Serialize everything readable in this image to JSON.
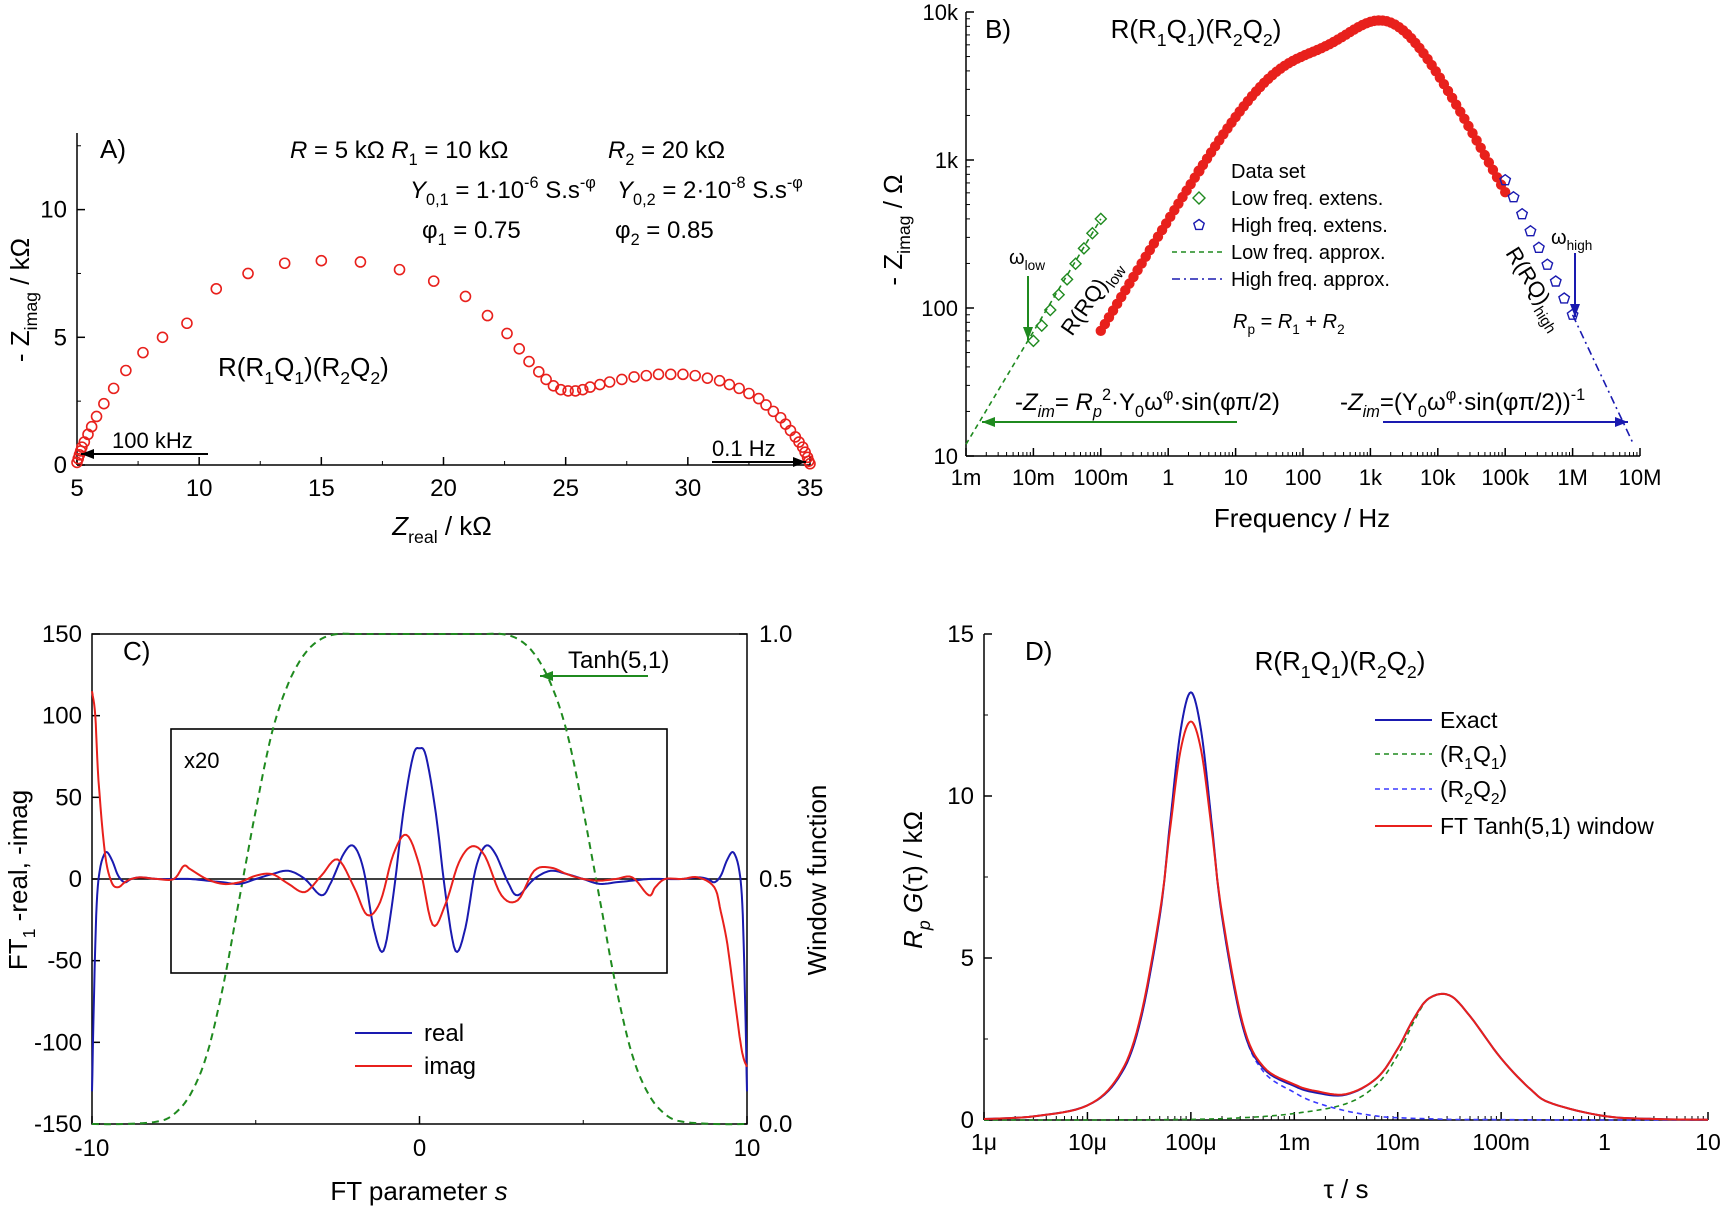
{
  "colors": {
    "red": "#e8201c",
    "blue": "#1a1ab0",
    "green": "#1f8a1f",
    "black": "#000000"
  },
  "chart_data": [
    {
      "panel": "A)",
      "type": "scatter",
      "title": "R(R1Q1)(R2Q2)",
      "xlabel": "Zreal / kΩ",
      "ylabel": "- Zimag / kΩ",
      "xlim": [
        5,
        35
      ],
      "ylim": [
        0,
        13
      ],
      "xticks": [
        5,
        10,
        15,
        20,
        25,
        30,
        35
      ],
      "yticks": [
        0,
        5,
        10
      ],
      "params": {
        "R": "R = 5 kΩ",
        "R1": "R1 = 10 kΩ",
        "R2": "R2 = 20 kΩ",
        "Y01": "Y0,1 = 1·10-6 S.s-φ",
        "Y02": "Y0,2 = 2·10-8 S.s-φ",
        "phi1": "φ1 = 0.75",
        "phi2": "φ2 = 0.85"
      },
      "annotations": {
        "high": "100 kHz",
        "low": "0.1 Hz"
      },
      "series": [
        {
          "marker": "open-circle",
          "color": "#e8201c",
          "x": [
            5.0,
            5.05,
            5.1,
            5.15,
            5.2,
            5.3,
            5.45,
            5.6,
            5.8,
            6.1,
            6.5,
            7.0,
            7.7,
            8.5,
            9.5,
            10.7,
            12.0,
            13.5,
            15.0,
            16.6,
            18.2,
            19.6,
            20.9,
            21.8,
            22.6,
            23.1,
            23.5,
            23.9,
            24.2,
            24.5,
            24.8,
            25.1,
            25.4,
            25.7,
            26.0,
            26.4,
            26.8,
            27.3,
            27.8,
            28.3,
            28.8,
            29.3,
            29.8,
            30.3,
            30.8,
            31.3,
            31.7,
            32.1,
            32.5,
            32.9,
            33.2,
            33.5,
            33.8,
            34.0,
            34.2,
            34.4,
            34.55,
            34.7,
            34.8,
            34.9,
            34.95,
            35.0
          ],
          "y": [
            0.1,
            0.25,
            0.4,
            0.55,
            0.7,
            0.9,
            1.2,
            1.5,
            1.9,
            2.4,
            3.0,
            3.7,
            4.4,
            5.0,
            5.55,
            6.9,
            7.5,
            7.9,
            8.0,
            7.95,
            7.65,
            7.2,
            6.6,
            5.85,
            5.15,
            4.55,
            4.05,
            3.65,
            3.35,
            3.1,
            2.95,
            2.9,
            2.9,
            2.95,
            3.05,
            3.15,
            3.25,
            3.35,
            3.45,
            3.5,
            3.55,
            3.55,
            3.55,
            3.5,
            3.4,
            3.3,
            3.15,
            3.0,
            2.8,
            2.6,
            2.35,
            2.1,
            1.85,
            1.6,
            1.35,
            1.1,
            0.9,
            0.7,
            0.5,
            0.3,
            0.15,
            0.05
          ]
        }
      ]
    },
    {
      "panel": "B)",
      "type": "scatter",
      "title": "R(R1Q1)(R2Q2)",
      "xlabel": "Frequency / Hz",
      "ylabel": "- Zimag / Ω",
      "xscale": "log",
      "yscale": "log",
      "xlim": [
        0.001,
        10000000
      ],
      "ylim": [
        10,
        10000
      ],
      "xtick_labels": [
        "1m",
        "10m",
        "100m",
        "1",
        "10",
        "100",
        "1k",
        "10k",
        "100k",
        "1M",
        "10M"
      ],
      "ytick_labels": [
        "10",
        "100",
        "1k",
        "10k"
      ],
      "legend": [
        "Data set",
        "Low  freq. extens.",
        "High freq. extens.",
        "Low  freq. approx.",
        "High freq. approx."
      ],
      "legend_note": "Rp = R1 + R2",
      "annotations": {
        "omega_low": "ωlow",
        "omega_high": "ωhigh",
        "rq_low": "R(RQ)low",
        "rq_high": "R(RQ)high",
        "formula_low": "-Zim= Rp2·Y0ωφ·sin(φπ/2)",
        "formula_high": "-Zim=(Y0ωφ·sin(φπ/2))-1"
      },
      "series": [
        {
          "name": "Data set",
          "marker": "filled-circle",
          "color": "#e8201c",
          "x_range_log10": [
            -1,
            5
          ],
          "points": 100
        },
        {
          "name": "Low  freq. extens.",
          "marker": "open-diamond",
          "color": "#1f8a1f",
          "x": [
            0.01,
            0.0133,
            0.0178,
            0.0237,
            0.0316,
            0.0422,
            0.0562,
            0.075,
            0.1
          ],
          "y": [
            60,
            76,
            97,
            123,
            156,
            199,
            253,
            320,
            400
          ]
        },
        {
          "name": "High freq. extens.",
          "marker": "open-pentagon",
          "color": "#1a1ab0",
          "x": [
            100000,
            133000,
            178000,
            237000,
            316000,
            422000,
            562000,
            750000,
            1000000
          ],
          "y": [
            730,
            560,
            430,
            330,
            255,
            196,
            151,
            116,
            90
          ]
        },
        {
          "name": "Low  freq. approx.",
          "line": "dashed",
          "color": "#1f8a1f",
          "x": [
            0.001,
            0.1
          ],
          "y": [
            12,
            400
          ]
        },
        {
          "name": "High freq. approx.",
          "line": "dashdot",
          "color": "#1a1ab0",
          "x": [
            1000000,
            8000000
          ],
          "y": [
            90,
            12
          ]
        }
      ]
    },
    {
      "panel": "C)",
      "type": "line",
      "xlabel": "FT parameter s",
      "ylabel": "FT1 -real,  -imag",
      "y2label": "Window function",
      "xlim": [
        -10,
        10
      ],
      "ylim": [
        -150,
        150
      ],
      "y2lim": [
        0,
        1
      ],
      "xticks": [
        -10,
        0,
        10
      ],
      "yticks": [
        -150,
        -100,
        -50,
        0,
        50,
        100,
        150
      ],
      "y2ticks": [
        "0.0",
        "0.5",
        "1.0"
      ],
      "annotations": {
        "window": "Tanh(5,1)",
        "inset": "x20"
      },
      "legend": [
        "real",
        "imag"
      ],
      "series": [
        {
          "name": "real",
          "color": "#1a1ab0",
          "x": [
            -10,
            -9.9,
            -9.8,
            -9.6,
            -9.4,
            -9.2,
            -9.0,
            -8.8,
            -8.5,
            -8.0,
            -7.5,
            -7.0,
            -6.5,
            -6.0,
            -5.5,
            -5.0,
            -4.5,
            -4.0,
            -3.5,
            -3.0,
            -2.7,
            -2.3,
            -2.0,
            -1.7,
            -1.4,
            -1.1,
            -0.8,
            -0.5,
            -0.2,
            0,
            0.2,
            0.5,
            0.8,
            1.1,
            1.4,
            1.7,
            2.0,
            2.3,
            2.7,
            3.0,
            3.5,
            4.0,
            4.5,
            5.0,
            5.5,
            6.0,
            6.5,
            7.0,
            7.5,
            8.0,
            8.5,
            8.8,
            9.0,
            9.2,
            9.4,
            9.6,
            9.8,
            9.9,
            10
          ],
          "y": [
            -130,
            -40,
            0,
            16,
            12,
            2,
            -2,
            0,
            1,
            0,
            0,
            0,
            -1,
            -2,
            -3,
            0,
            3,
            5,
            0,
            -10,
            -2,
            16,
            20,
            5,
            -30,
            -44,
            -10,
            40,
            75,
            80,
            75,
            40,
            -10,
            -44,
            -30,
            5,
            20,
            16,
            -2,
            -10,
            0,
            5,
            3,
            0,
            -3,
            -2,
            -1,
            0,
            0,
            0,
            1,
            0,
            -2,
            2,
            12,
            16,
            0,
            -40,
            -130
          ]
        },
        {
          "name": "imag",
          "color": "#e8201c",
          "x": [
            -10,
            -9.9,
            -9.8,
            -9.6,
            -9.4,
            -9.2,
            -9.0,
            -8.8,
            -8.5,
            -8.0,
            -7.5,
            -7.2,
            -7.0,
            -6.5,
            -6.0,
            -5.5,
            -5.0,
            -4.5,
            -4.0,
            -3.5,
            -3.0,
            -2.5,
            -2.0,
            -1.6,
            -1.2,
            -0.8,
            -0.4,
            0,
            0.4,
            0.8,
            1.2,
            1.6,
            2.0,
            2.5,
            3.0,
            3.5,
            4.0,
            4.5,
            5.0,
            5.5,
            6.0,
            6.5,
            7.0,
            7.2,
            7.5,
            8.0,
            8.5,
            9.0,
            9.2,
            9.4,
            9.6,
            9.8,
            9.9,
            10
          ],
          "y": [
            115,
            100,
            60,
            15,
            -2,
            -5,
            -2,
            0,
            1,
            0,
            0,
            8,
            6,
            0,
            -3,
            -2,
            2,
            3,
            -3,
            -8,
            2,
            12,
            -5,
            -22,
            -14,
            15,
            27,
            8,
            -28,
            -15,
            10,
            20,
            14,
            -10,
            -13,
            5,
            7,
            3,
            0,
            -1,
            0,
            1,
            -10,
            -5,
            0,
            0,
            1,
            -5,
            -20,
            -40,
            -70,
            -100,
            -110,
            -115
          ]
        },
        {
          "name": "Tanh(5,1)",
          "line": "dashed",
          "color": "#1f8a1f",
          "axis": "y2",
          "x": [
            -10,
            -9,
            -8,
            -7.5,
            -7,
            -6.5,
            -6,
            -5.5,
            -5,
            -4.5,
            -4,
            -3.5,
            -3,
            -2.5,
            -2,
            -1,
            0,
            1,
            2,
            2.5,
            3,
            3.5,
            4,
            4.5,
            5,
            5.5,
            6,
            6.5,
            7,
            7.5,
            8,
            9,
            10
          ],
          "y": [
            0,
            0,
            0.005,
            0.02,
            0.06,
            0.14,
            0.28,
            0.46,
            0.64,
            0.8,
            0.9,
            0.96,
            0.99,
            1,
            1,
            1,
            1,
            1,
            1,
            1,
            0.99,
            0.96,
            0.9,
            0.8,
            0.64,
            0.46,
            0.28,
            0.14,
            0.06,
            0.02,
            0.005,
            0,
            0
          ]
        }
      ]
    },
    {
      "panel": "D)",
      "type": "line",
      "title": "R(R1Q1)(R2Q2)",
      "xlabel": "τ / s",
      "ylabel": "Rp G(τ) / kΩ",
      "xscale": "log",
      "xlim": [
        1e-06,
        10
      ],
      "ylim": [
        0,
        15
      ],
      "xtick_labels": [
        "1μ",
        "10μ",
        "100μ",
        "1m",
        "10m",
        "100m",
        "1",
        "10"
      ],
      "yticks": [
        0,
        5,
        10,
        15
      ],
      "legend": [
        "Exact",
        "(R1Q1)",
        "(R2Q2)",
        "FT Tanh(5,1) window"
      ],
      "series": [
        {
          "name": "Exact",
          "color": "#1a1ab0",
          "line": "solid",
          "x": [
            -6,
            -5.5,
            -5,
            -4.7,
            -4.5,
            -4.3,
            -4.2,
            -4.1,
            -4,
            -3.9,
            -3.8,
            -3.7,
            -3.5,
            -3.3,
            -3,
            -2.8,
            -2.5,
            -2.2,
            -2,
            -1.85,
            -1.7,
            -1.5,
            -1.3,
            -1,
            -0.7,
            -0.5,
            0,
            0.5,
            1
          ],
          "y": [
            0.03,
            0.12,
            0.45,
            1.3,
            2.9,
            6.3,
            9.2,
            12.0,
            13.2,
            12.0,
            9.2,
            6.3,
            2.9,
            1.6,
            1.05,
            0.85,
            0.78,
            1.3,
            2.2,
            3.1,
            3.75,
            3.85,
            3.2,
            1.9,
            0.9,
            0.5,
            0.12,
            0.03,
            0.01
          ]
        },
        {
          "name": "(R1Q1)",
          "color": "#1f8a1f",
          "line": "dashed",
          "x": [
            -6,
            -5,
            -4,
            -3.5,
            -3,
            -2.5,
            -2.2,
            -2,
            -1.85,
            -1.7,
            -1.5,
            -1.3,
            -1,
            -0.7,
            -0.5,
            0,
            0.5,
            1
          ],
          "y": [
            0,
            0,
            0.02,
            0.07,
            0.2,
            0.5,
            1.1,
            2.0,
            3.0,
            3.75,
            3.85,
            3.2,
            1.9,
            0.9,
            0.5,
            0.12,
            0.03,
            0.01
          ]
        },
        {
          "name": "(R2Q2)",
          "color": "#3a3aff",
          "line": "dashed",
          "x": [
            -6,
            -5.5,
            -5,
            -4.7,
            -4.5,
            -4.3,
            -4.2,
            -4.1,
            -4,
            -3.9,
            -3.8,
            -3.7,
            -3.5,
            -3.3,
            -3,
            -2.8,
            -2.5,
            -2.2,
            -2,
            -1.5,
            -1,
            0,
            1
          ],
          "y": [
            0.03,
            0.12,
            0.45,
            1.3,
            2.9,
            6.3,
            9.2,
            12.0,
            13.2,
            12.0,
            9.2,
            6.3,
            2.9,
            1.5,
            0.85,
            0.55,
            0.28,
            0.12,
            0.07,
            0.02,
            0.01,
            0,
            0
          ]
        },
        {
          "name": "FT Tanh(5,1) window",
          "color": "#e8201c",
          "line": "solid",
          "x": [
            -6,
            -5.5,
            -5,
            -4.7,
            -4.5,
            -4.3,
            -4.2,
            -4.1,
            -4,
            -3.9,
            -3.8,
            -3.7,
            -3.5,
            -3.3,
            -3,
            -2.8,
            -2.5,
            -2.2,
            -2,
            -1.85,
            -1.7,
            -1.5,
            -1.3,
            -1,
            -0.7,
            -0.5,
            0,
            0.5,
            1
          ],
          "y": [
            0.03,
            0.12,
            0.45,
            1.35,
            3.0,
            6.4,
            9.0,
            11.4,
            12.3,
            11.4,
            9.0,
            6.4,
            3.0,
            1.65,
            1.1,
            0.9,
            0.8,
            1.3,
            2.2,
            3.1,
            3.75,
            3.85,
            3.2,
            1.9,
            0.9,
            0.5,
            0.12,
            0.03,
            0.01
          ]
        }
      ]
    }
  ]
}
